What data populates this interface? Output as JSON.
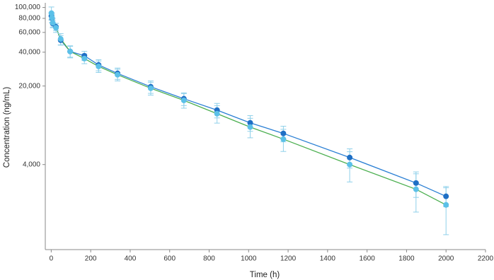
{
  "chart_data": {
    "type": "line",
    "x_label": "Time (h)",
    "y_label": "Concentration (ng/mL)",
    "log_y": true,
    "grid": false,
    "xlim": [
      -30,
      2200
    ],
    "xticks": [
      0,
      200,
      400,
      600,
      800,
      1000,
      1200,
      1400,
      1600,
      1800,
      2000,
      2200
    ],
    "ylim": [
      700,
      110000
    ],
    "yticks": [
      {
        "value": 4000,
        "label": "4,000"
      },
      {
        "value": 20000,
        "label": "20,000"
      },
      {
        "value": 40000,
        "label": "40,000"
      },
      {
        "value": 60000,
        "label": "60,000"
      },
      {
        "value": 80000,
        "label": "80,000"
      },
      {
        "value": 100000,
        "label": "100,000"
      }
    ],
    "error_color": "#8fd0ea",
    "series": [
      {
        "color": "#1f6fc5",
        "line_color": "#2a7fd4",
        "x": [
          1,
          4,
          8,
          24,
          48,
          96,
          168,
          240,
          336,
          504,
          672,
          840,
          1008,
          1176,
          1512,
          1848,
          2000
        ],
        "values": [
          84000,
          80000,
          72000,
          67300,
          51200,
          40600,
          37200,
          30800,
          25900,
          19700,
          15400,
          12200,
          9400,
          7570,
          4620,
          2740,
          2085
        ],
        "errors": [
          6000,
          6000,
          5000,
          5000,
          5000,
          4500,
          3500,
          3500,
          3000,
          2500,
          2000,
          1800,
          1500,
          1200,
          900,
          700,
          400
        ]
      },
      {
        "color": "#5bc0e8",
        "line_color": "#4caf50",
        "x": [
          1,
          4,
          8,
          24,
          48,
          96,
          168,
          240,
          336,
          504,
          672,
          840,
          1008,
          1176,
          1512,
          1848,
          2000
        ],
        "values": [
          89000,
          81000,
          73000,
          66000,
          52500,
          40600,
          35100,
          29900,
          25200,
          19100,
          14900,
          11350,
          8620,
          6730,
          4000,
          2410,
          1750
        ],
        "errors": [
          12000,
          8000,
          7000,
          6000,
          6000,
          5000,
          3500,
          3500,
          3000,
          2500,
          2200,
          2000,
          1700,
          1500,
          1200,
          900,
          800
        ]
      }
    ]
  }
}
